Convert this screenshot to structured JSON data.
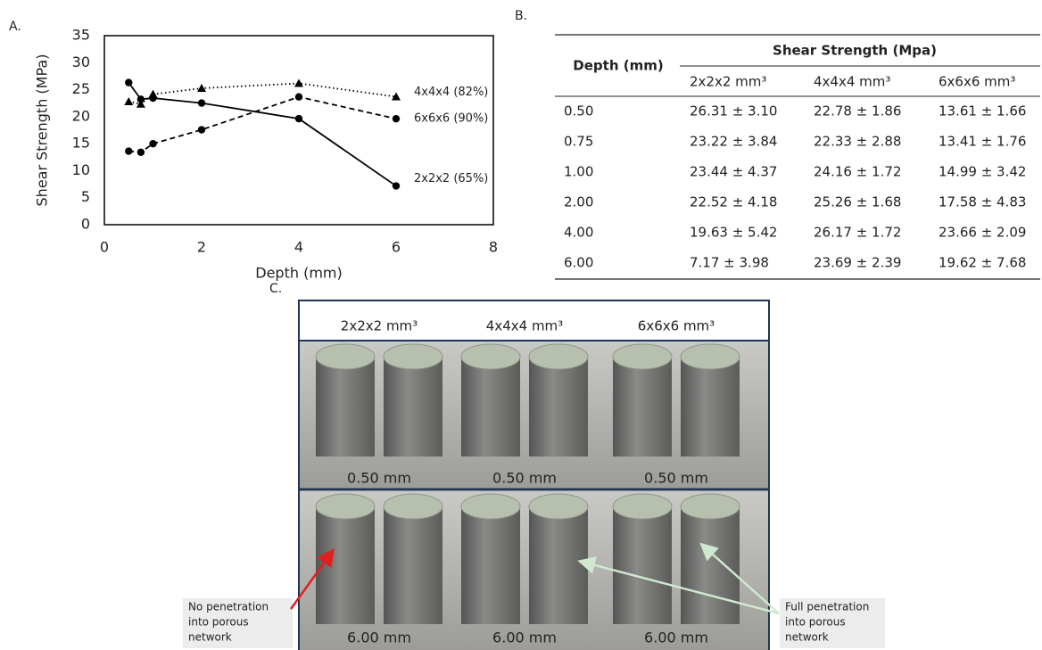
{
  "panel_labels": {
    "a": "A.",
    "b": "B.",
    "c": "C."
  },
  "chart_data": {
    "type": "line",
    "x_label": "Depth (mm)",
    "y_label": "Shear Strength (MPa)",
    "x": [
      0.5,
      0.75,
      1,
      2,
      4,
      6
    ],
    "series": [
      {
        "name": "2x2x2 (65%)",
        "color": "#000000",
        "marker": "circle",
        "dash": "solid",
        "values": [
          26.31,
          23.22,
          23.44,
          22.52,
          19.63,
          7.17
        ]
      },
      {
        "name": "4x4x4 (82%)",
        "color": "#000000",
        "marker": "triangle",
        "dash": "dotted",
        "values": [
          22.78,
          22.33,
          24.16,
          25.26,
          26.17,
          23.69
        ]
      },
      {
        "name": "6x6x6 (90%)",
        "color": "#000000",
        "marker": "circle",
        "dash": "dashed",
        "values": [
          13.61,
          13.41,
          14.99,
          17.58,
          23.66,
          19.62
        ]
      }
    ],
    "xlim": [
      0,
      8
    ],
    "xticks": [
      0,
      2,
      4,
      6,
      8
    ],
    "ylim": [
      0,
      35
    ],
    "yticks": [
      0,
      5,
      10,
      15,
      20,
      25,
      30,
      35
    ],
    "grid": false
  },
  "table": {
    "depth_header": "Depth (mm)",
    "group_header": "Shear Strength (Mpa)",
    "columns": [
      "2x2x2 mm³",
      "4x4x4 mm³",
      "6x6x6 mm³"
    ],
    "rows": [
      [
        "0.50",
        "26.31 ± 3.10",
        "22.78 ± 1.86",
        "13.61 ± 1.66"
      ],
      [
        "0.75",
        "23.22 ± 3.84",
        "22.33 ± 2.88",
        "13.41 ± 1.76"
      ],
      [
        "1.00",
        "23.44 ± 4.37",
        "24.16 ± 1.72",
        "14.99 ± 3.42"
      ],
      [
        "2.00",
        "22.52 ± 4.18",
        "25.26 ± 1.68",
        "17.58 ± 4.83"
      ],
      [
        "4.00",
        "19.63 ± 5.42",
        "26.17 ± 1.72",
        "23.66 ± 2.09"
      ],
      [
        "6.00",
        "7.17 ± 3.98",
        "23.69 ± 2.39",
        "19.62 ± 7.68"
      ]
    ]
  },
  "photos": {
    "columns": [
      "2x2x2 mm³",
      "4x4x4 mm³",
      "6x6x6 mm³"
    ],
    "row_labels": [
      [
        "0.50 mm",
        "0.50 mm",
        "0.50 mm"
      ],
      [
        "6.00 mm",
        "6.00 mm",
        "6.00 mm"
      ]
    ],
    "annotations": [
      [
        "No penetration",
        "into porous",
        "network"
      ],
      [
        "Full penetration",
        "into porous",
        "network"
      ]
    ]
  }
}
